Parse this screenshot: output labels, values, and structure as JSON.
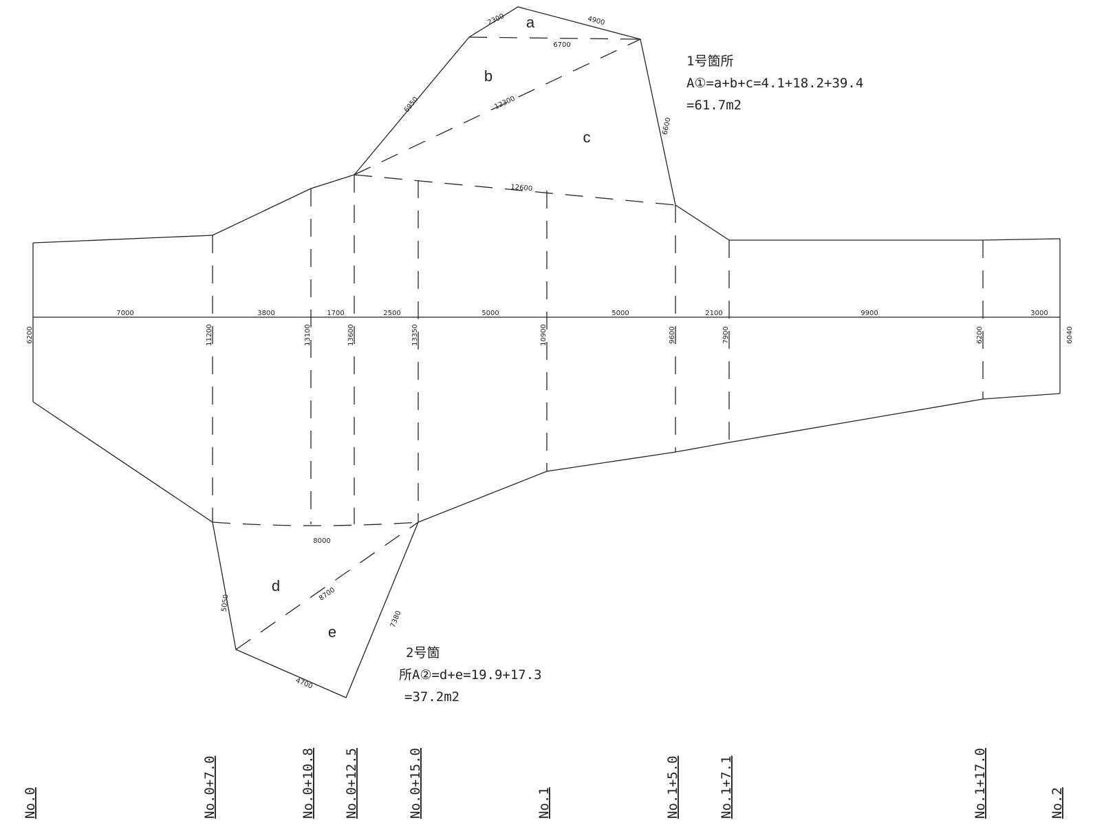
{
  "baseline_spacings": [
    "7000",
    "3800",
    "1700",
    "2500",
    "5000",
    "5000",
    "2100",
    "9900",
    "3000"
  ],
  "section_widths": [
    "6200",
    "11200",
    "13100",
    "13600",
    "13350",
    "10900",
    "9600",
    "7900",
    "6200",
    "6040"
  ],
  "stations": [
    "No.0",
    "No.0+7.0",
    "No.0+10.8",
    "No.0+12.5",
    "No.0+15.0",
    "No.1",
    "No.1+5.0",
    "No.1+7.1",
    "No.1+17.0",
    "No.2"
  ],
  "area1": {
    "labels": [
      "a",
      "b",
      "c"
    ],
    "dims": [
      "2300",
      "4900",
      "6700",
      "6950",
      "12300",
      "6600",
      "12600"
    ],
    "note_lines": [
      "1号箇所",
      "A①=a+b+c=4.1+18.2+39.4",
      "=61.7m2"
    ]
  },
  "area2": {
    "labels": [
      "d",
      "e"
    ],
    "dims": [
      "8000",
      "5050",
      "8700",
      "7380",
      "4700"
    ],
    "note_lines": [
      "2号箇",
      "所A②=d+e=19.9+17.3",
      "=37.2m2"
    ]
  }
}
